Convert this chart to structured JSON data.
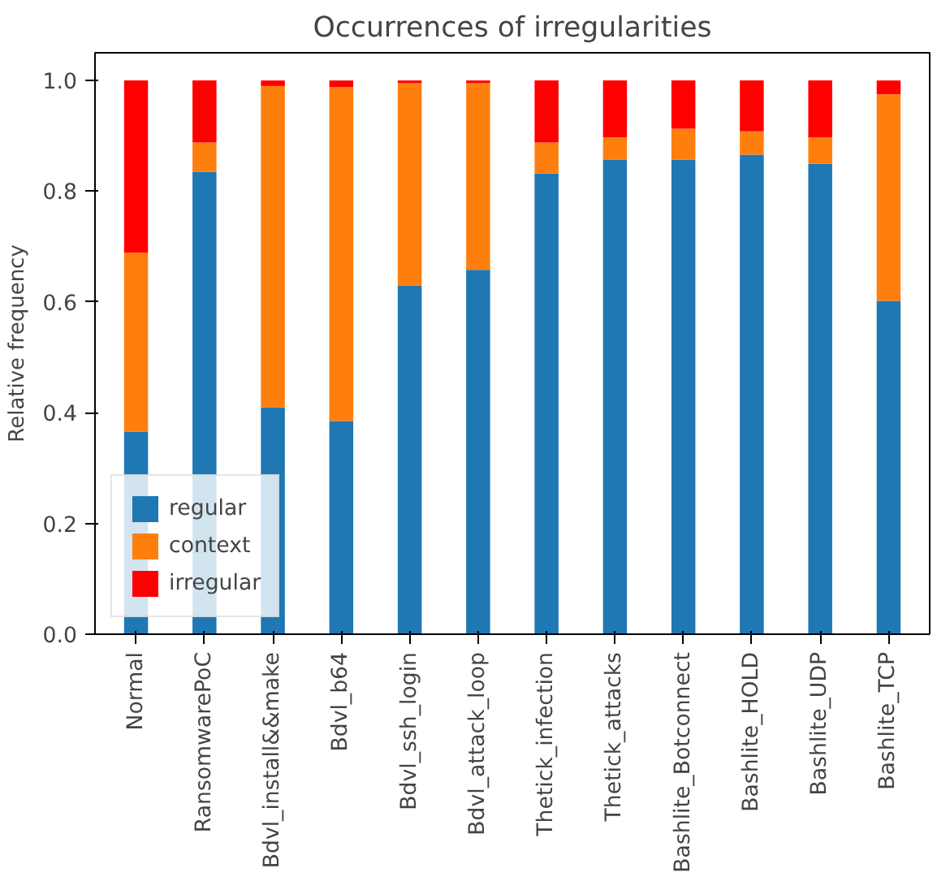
{
  "chart_data": {
    "type": "bar",
    "title": "Occurrences of irregularities",
    "ylabel": "Relative frequency",
    "stacked": true,
    "legend": "bottom left",
    "grid": false,
    "categories": [
      "Normal",
      "RansomwarePoC",
      "Bdvl_install&&make",
      "Bdvl_b64",
      "Bdvl_ssh_login",
      "Bdvl_attack_loop",
      "Thetick_infection",
      "Thetick_attacks",
      "Bashlite_Botconnect",
      "Bashlite_HOLD",
      "Bashlite_UDP",
      "Bashlite_TCP"
    ],
    "ylim": [
      0,
      1.05
    ],
    "yticks": [
      {
        "value": 0,
        "label": "0.0"
      },
      {
        "value": 0.2,
        "label": "0.2"
      },
      {
        "value": 0.4,
        "label": "0.4"
      },
      {
        "value": 0.6,
        "label": "0.6"
      },
      {
        "value": 0.8,
        "label": "0.8"
      },
      {
        "value": 1,
        "label": "1.0"
      }
    ],
    "series": [
      {
        "name": "regular",
        "color": "#1f77b4",
        "values": [
          0.366,
          0.835,
          0.41,
          0.385,
          0.63,
          0.658,
          0.832,
          0.857,
          0.857,
          0.866,
          0.85,
          0.602
        ]
      },
      {
        "name": "context",
        "color": "#ff7f0e",
        "values": [
          0.323,
          0.053,
          0.58,
          0.603,
          0.365,
          0.337,
          0.056,
          0.04,
          0.056,
          0.042,
          0.047,
          0.373
        ]
      },
      {
        "name": "irregular",
        "color": "#ff0000",
        "values": [
          0.311,
          0.112,
          0.01,
          0.012,
          0.005,
          0.005,
          0.112,
          0.103,
          0.087,
          0.092,
          0.103,
          0.025
        ]
      }
    ]
  }
}
